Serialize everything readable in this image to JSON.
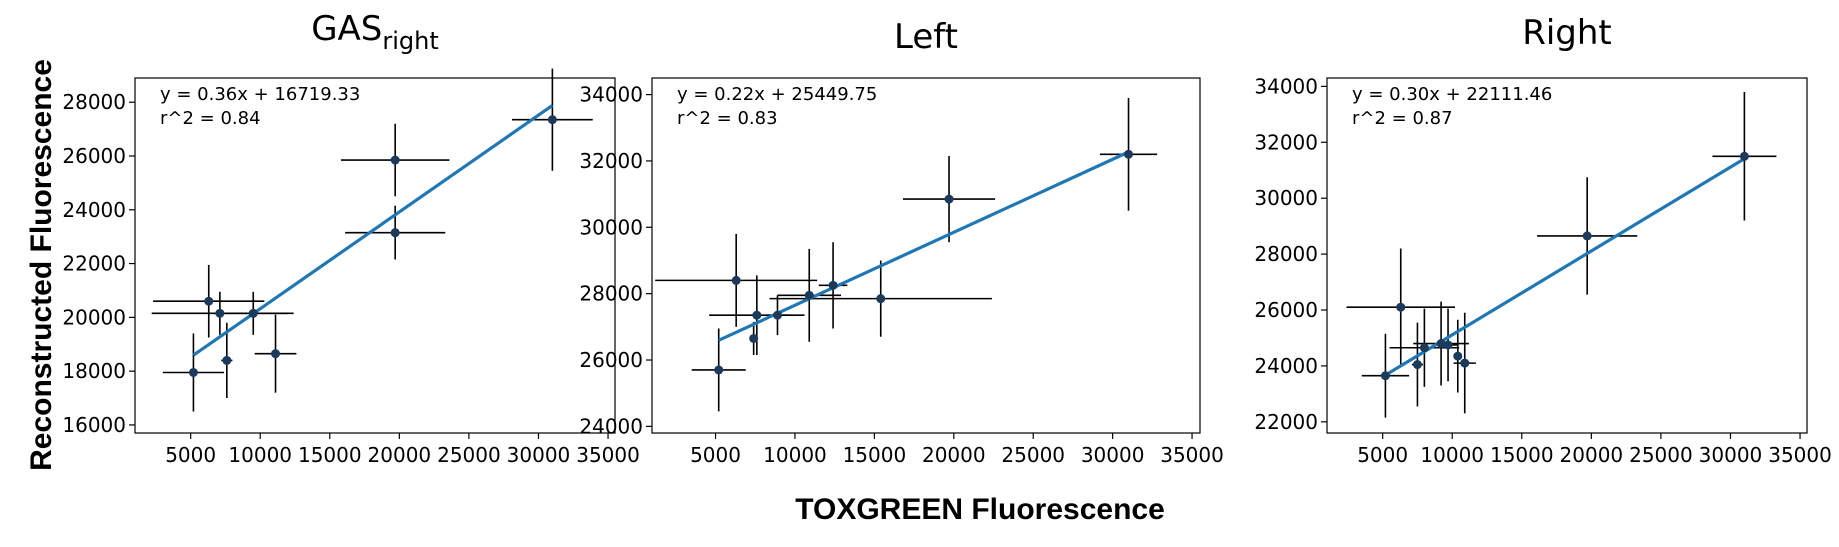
{
  "figure": {
    "xlabel": "TOXGREEN Fluorescence",
    "ylabel": "Reconstructed Fluorescence"
  },
  "colors": {
    "fit_line": "#1f77b4",
    "points": "#1b3a5c",
    "errorbars": "#000000"
  },
  "chart_data": [
    {
      "type": "scatter",
      "title": "GAS",
      "title_subscript": "right",
      "equation": "y = 0.36x + 16719.33",
      "r2": "r^2 = 0.84",
      "xlim": [
        1000,
        35500
      ],
      "ylim": [
        15700,
        28900
      ],
      "xticks": [
        5000,
        10000,
        15000,
        20000,
        25000,
        30000,
        35000
      ],
      "yticks": [
        16000,
        18000,
        20000,
        22000,
        24000,
        26000,
        28000
      ],
      "fit": {
        "slope": 0.36,
        "intercept": 16719.33,
        "x_range": [
          5200,
          31000
        ]
      },
      "points": [
        {
          "x": 5200,
          "y": 17950,
          "xerr": 2200,
          "yerr": 1450
        },
        {
          "x": 6300,
          "y": 20600,
          "xerr": 4000,
          "yerr": 1350
        },
        {
          "x": 7100,
          "y": 20150,
          "xerr": 4900,
          "yerr": 800
        },
        {
          "x": 7600,
          "y": 18400,
          "xerr": 400,
          "yerr": 1400
        },
        {
          "x": 9500,
          "y": 20150,
          "xerr": 2900,
          "yerr": 800
        },
        {
          "x": 11100,
          "y": 18650,
          "xerr": 1500,
          "yerr": 1450
        },
        {
          "x": 19700,
          "y": 23150,
          "xerr": 3600,
          "yerr": 1000
        },
        {
          "x": 19700,
          "y": 25850,
          "xerr": 3900,
          "yerr": 1350
        },
        {
          "x": 31000,
          "y": 27350,
          "xerr": 2900,
          "yerr": 1900
        }
      ]
    },
    {
      "type": "scatter",
      "title": "Left",
      "title_subscript": "",
      "equation": "y = 0.22x + 25449.75",
      "r2": "r^2 = 0.83",
      "xlim": [
        1000,
        35500
      ],
      "ylim": [
        23800,
        34500
      ],
      "xticks": [
        5000,
        10000,
        15000,
        20000,
        25000,
        30000,
        35000
      ],
      "yticks": [
        24000,
        26000,
        28000,
        30000,
        32000,
        34000
      ],
      "fit": {
        "slope": 0.22,
        "intercept": 25449.75,
        "x_range": [
          5200,
          31000
        ]
      },
      "points": [
        {
          "x": 5200,
          "y": 25700,
          "xerr": 1700,
          "yerr": 1250
        },
        {
          "x": 6300,
          "y": 28400,
          "xerr": 5100,
          "yerr": 1400
        },
        {
          "x": 7400,
          "y": 26650,
          "xerr": 200,
          "yerr": 500
        },
        {
          "x": 7600,
          "y": 27350,
          "xerr": 3000,
          "yerr": 1200
        },
        {
          "x": 8900,
          "y": 27350,
          "xerr": 700,
          "yerr": 600
        },
        {
          "x": 10900,
          "y": 27950,
          "xerr": 2000,
          "yerr": 1400
        },
        {
          "x": 12400,
          "y": 28250,
          "xerr": 900,
          "yerr": 1300
        },
        {
          "x": 15400,
          "y": 27850,
          "xerr": 7000,
          "yerr": 1150
        },
        {
          "x": 19700,
          "y": 30850,
          "xerr": 2900,
          "yerr": 1300
        },
        {
          "x": 31000,
          "y": 32200,
          "xerr": 1800,
          "yerr": 1700
        }
      ]
    },
    {
      "type": "scatter",
      "title": "Right",
      "title_subscript": "",
      "equation": "y = 0.30x + 22111.46",
      "r2": "r^2 = 0.87",
      "xlim": [
        1000,
        35500
      ],
      "ylim": [
        21600,
        34300
      ],
      "xticks": [
        5000,
        10000,
        15000,
        20000,
        25000,
        30000,
        35000
      ],
      "yticks": [
        22000,
        24000,
        26000,
        28000,
        30000,
        32000,
        34000
      ],
      "fit": {
        "slope": 0.3,
        "intercept": 22111.46,
        "x_range": [
          5200,
          31000
        ]
      },
      "points": [
        {
          "x": 5200,
          "y": 23650,
          "xerr": 1700,
          "yerr": 1500
        },
        {
          "x": 6300,
          "y": 26100,
          "xerr": 3900,
          "yerr": 2100
        },
        {
          "x": 7500,
          "y": 24050,
          "xerr": 400,
          "yerr": 1500
        },
        {
          "x": 8000,
          "y": 24650,
          "xerr": 2500,
          "yerr": 1400
        },
        {
          "x": 9200,
          "y": 24800,
          "xerr": 2000,
          "yerr": 1500
        },
        {
          "x": 9700,
          "y": 24750,
          "xerr": 700,
          "yerr": 1300
        },
        {
          "x": 10400,
          "y": 24350,
          "xerr": 300,
          "yerr": 1300
        },
        {
          "x": 10900,
          "y": 24100,
          "xerr": 800,
          "yerr": 1800
        },
        {
          "x": 19700,
          "y": 28650,
          "xerr": 3600,
          "yerr": 2100
        },
        {
          "x": 31000,
          "y": 31500,
          "xerr": 2300,
          "yerr": 2300
        }
      ]
    }
  ]
}
